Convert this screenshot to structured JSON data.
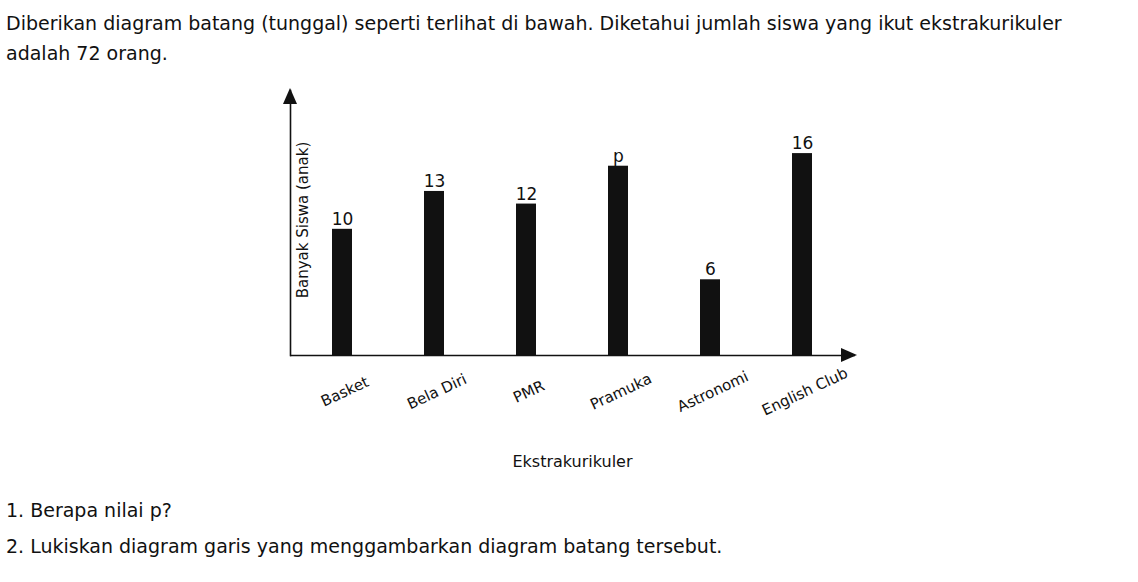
{
  "chart_data": {
    "type": "bar",
    "title": "Diberikan diagram batang (tunggal) seperti terlihat di bawah. Diketahui jumlah siswa yang ikut ekstrakurikuler adalah 72 orang.",
    "x_label": "Ekstrakurikuler",
    "y_label": "Banyak Siswa (anak)",
    "categories": [
      "Basket",
      "Bela Diri",
      "PMR",
      "Pramuka",
      "Astronomi",
      "English Club"
    ],
    "values": [
      10,
      13,
      12,
      15,
      6,
      16
    ],
    "value_labels": [
      "10",
      "13",
      "12",
      "p",
      "6",
      "16"
    ],
    "data_labels": true,
    "color": "#111111",
    "ylim": [
      0,
      21
    ],
    "yticks": [],
    "tick_labels": "x",
    "grid": false,
    "annotations": [
      "1.   Berapa nilai p?",
      "2.   Lukiskan diagram garis yang menggambarkan diagram batang tersebut."
    ]
  }
}
